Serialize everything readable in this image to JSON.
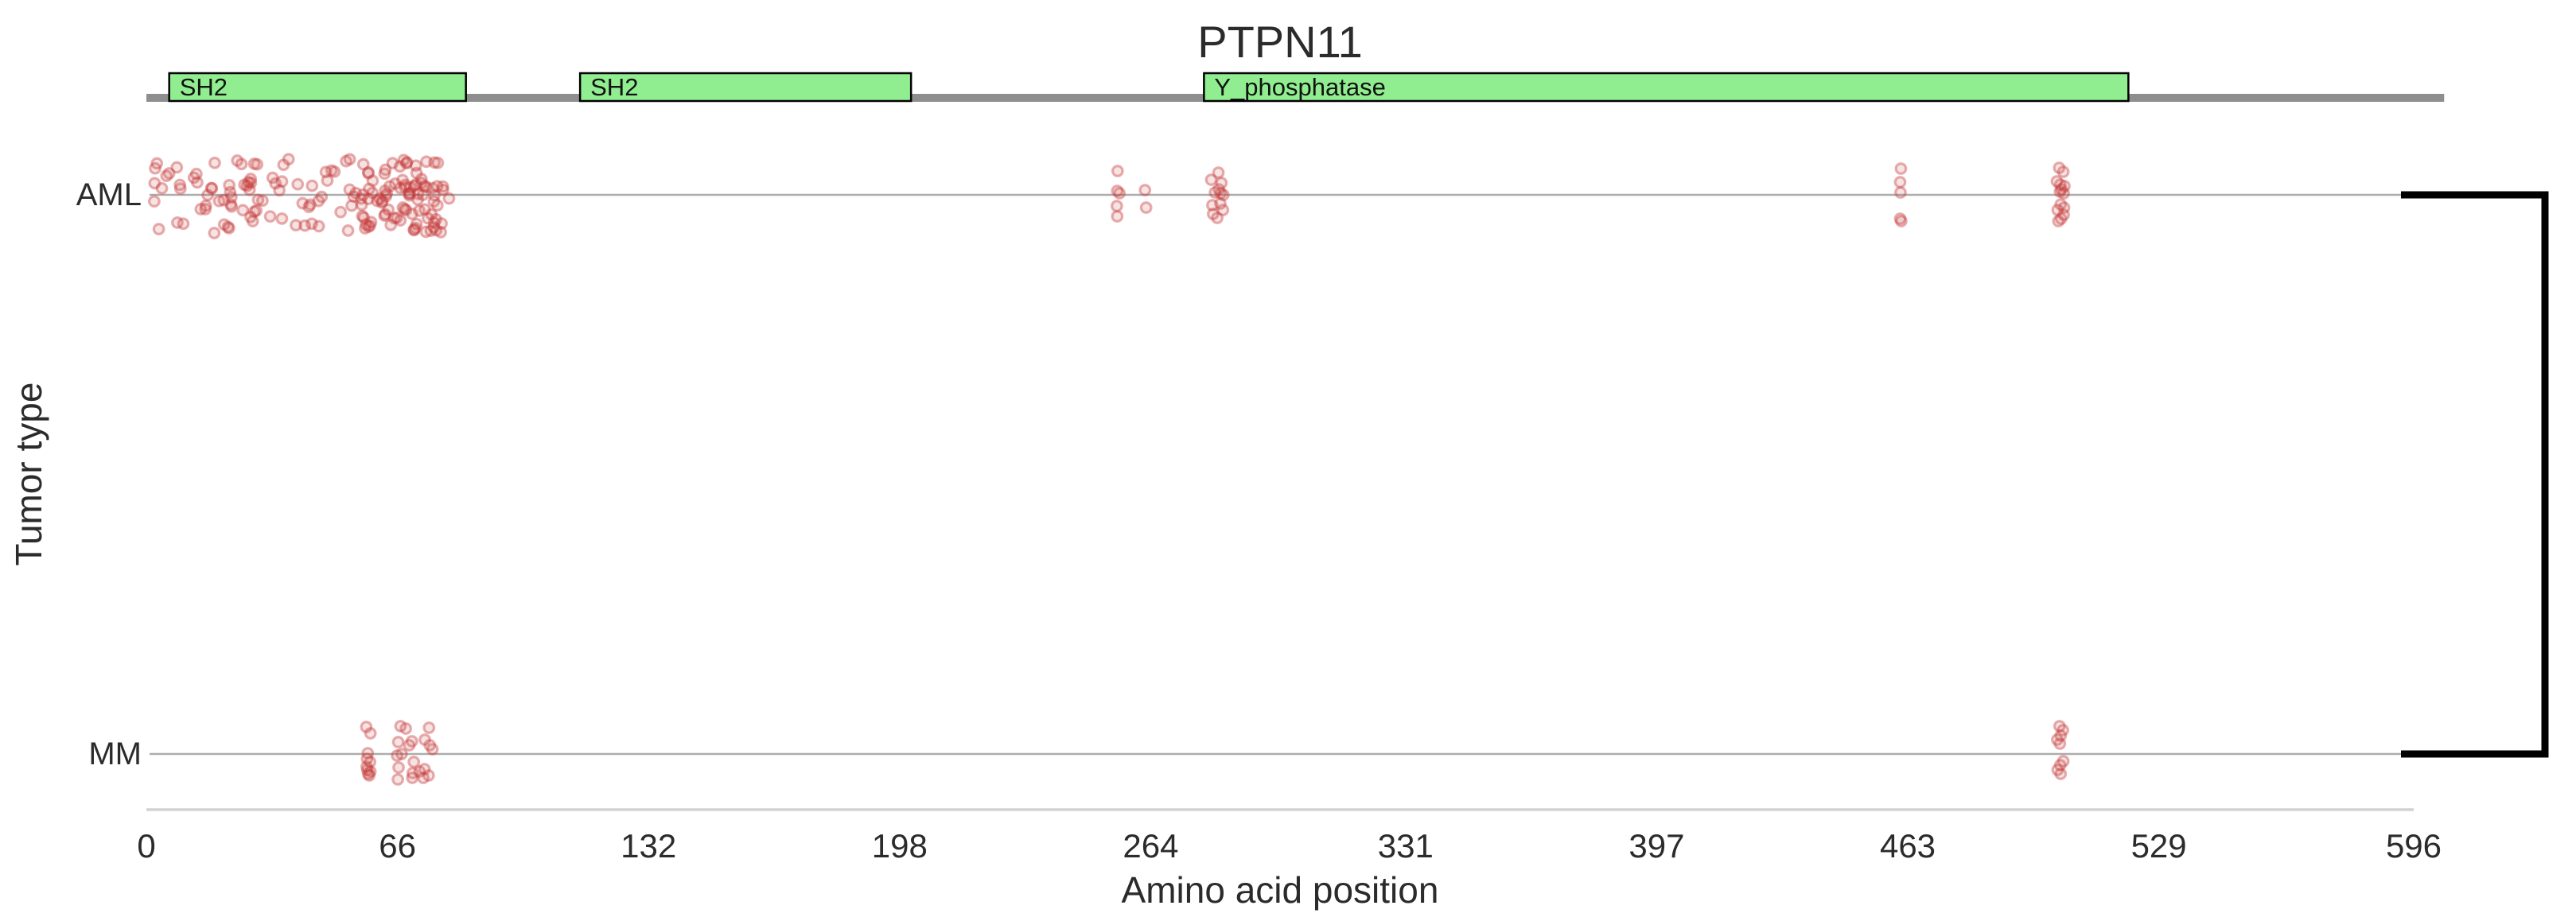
{
  "chart_data": {
    "type": "scatter",
    "subtype": "jitter-strip-mutation-plot",
    "title": "PTPN11",
    "xlabel": "Amino acid position",
    "ylabel": "Tumor type",
    "categories": [
      "AML",
      "MM"
    ],
    "xlim": [
      0,
      596
    ],
    "xticks": [
      0,
      66,
      132,
      198,
      264,
      331,
      397,
      463,
      529,
      596
    ],
    "grid": "off",
    "legend": "none",
    "protein_backbone": {
      "start": 0,
      "end": 604
    },
    "domains": [
      {
        "label": "SH2",
        "start": 6,
        "end": 84
      },
      {
        "label": "SH2",
        "start": 114,
        "end": 201
      },
      {
        "label": "Y_phosphatase",
        "start": 278,
        "end": 521
      }
    ],
    "series": [
      {
        "name": "AML",
        "dense_clusters": [
          {
            "aa_min": 2,
            "aa_max": 80,
            "count": 118
          },
          {
            "aa_min": 56,
            "aa_max": 78,
            "count": 54
          }
        ],
        "points": [
          [
            255.3,
            -30
          ],
          [
            255.2,
            -5
          ],
          [
            255.8,
            -2
          ],
          [
            255.1,
            14
          ],
          [
            255.2,
            27
          ],
          [
            262.5,
            -6
          ],
          [
            262.8,
            16
          ],
          [
            281.8,
            -28
          ],
          [
            279.9,
            -19
          ],
          [
            282.6,
            -15
          ],
          [
            281.9,
            -7
          ],
          [
            282.4,
            -2
          ],
          [
            283.1,
            0
          ],
          [
            280.9,
            -3
          ],
          [
            280.2,
            13
          ],
          [
            282.3,
            11
          ],
          [
            280.4,
            24
          ],
          [
            283.0,
            19
          ],
          [
            281.5,
            29
          ],
          [
            461.2,
            -33
          ],
          [
            461.0,
            -16
          ],
          [
            461.1,
            -3
          ],
          [
            461.0,
            30
          ],
          [
            461.3,
            33
          ],
          [
            502.8,
            -34
          ],
          [
            503.9,
            -29
          ],
          [
            502.2,
            -17
          ],
          [
            503.1,
            -13
          ],
          [
            504.2,
            -11
          ],
          [
            503.4,
            -7
          ],
          [
            504.0,
            -2
          ],
          [
            503.0,
            -4
          ],
          [
            503.2,
            12
          ],
          [
            504.1,
            16
          ],
          [
            502.4,
            19
          ],
          [
            504.0,
            25
          ],
          [
            503.3,
            30
          ],
          [
            502.6,
            33
          ]
        ]
      },
      {
        "name": "MM",
        "dense_clusters": [],
        "points": [
          [
            57.8,
            -34
          ],
          [
            58.9,
            -26
          ],
          [
            58.2,
            -1
          ],
          [
            58.0,
            6
          ],
          [
            58.8,
            10
          ],
          [
            57.9,
            16
          ],
          [
            58.1,
            20
          ],
          [
            58.9,
            22
          ],
          [
            58.3,
            25
          ],
          [
            58.6,
            27
          ],
          [
            66.8,
            -35
          ],
          [
            68.2,
            -32
          ],
          [
            74.3,
            -33
          ],
          [
            66.2,
            -15
          ],
          [
            69.8,
            -16
          ],
          [
            69.1,
            -11
          ],
          [
            73.2,
            -18
          ],
          [
            74.5,
            -11
          ],
          [
            75.2,
            -6
          ],
          [
            65.9,
            2
          ],
          [
            67.1,
            0
          ],
          [
            70.3,
            10
          ],
          [
            66.3,
            17
          ],
          [
            70.0,
            24
          ],
          [
            71.8,
            22
          ],
          [
            73.1,
            19
          ],
          [
            74.2,
            27
          ],
          [
            66.1,
            32
          ],
          [
            69.9,
            30
          ],
          [
            72.8,
            30
          ],
          [
            502.9,
            -35
          ],
          [
            503.8,
            -30
          ],
          [
            503.2,
            -23
          ],
          [
            502.3,
            -18
          ],
          [
            503.0,
            -13
          ],
          [
            503.9,
            9
          ],
          [
            503.1,
            14
          ],
          [
            502.4,
            20
          ],
          [
            503.2,
            25
          ]
        ]
      }
    ],
    "annotations": [
      {
        "type": "bracket",
        "side": "right",
        "connects": [
          "AML",
          "MM"
        ]
      }
    ],
    "colors": {
      "domain_fill": "#90ee90",
      "domain_border": "#000000",
      "backbone": "#8e8e8e",
      "row_line": "#adadad",
      "axis_line": "#d2d2d2",
      "point": "#c53a3a",
      "bracket": "#000000",
      "text": "#2b2b2b"
    }
  }
}
